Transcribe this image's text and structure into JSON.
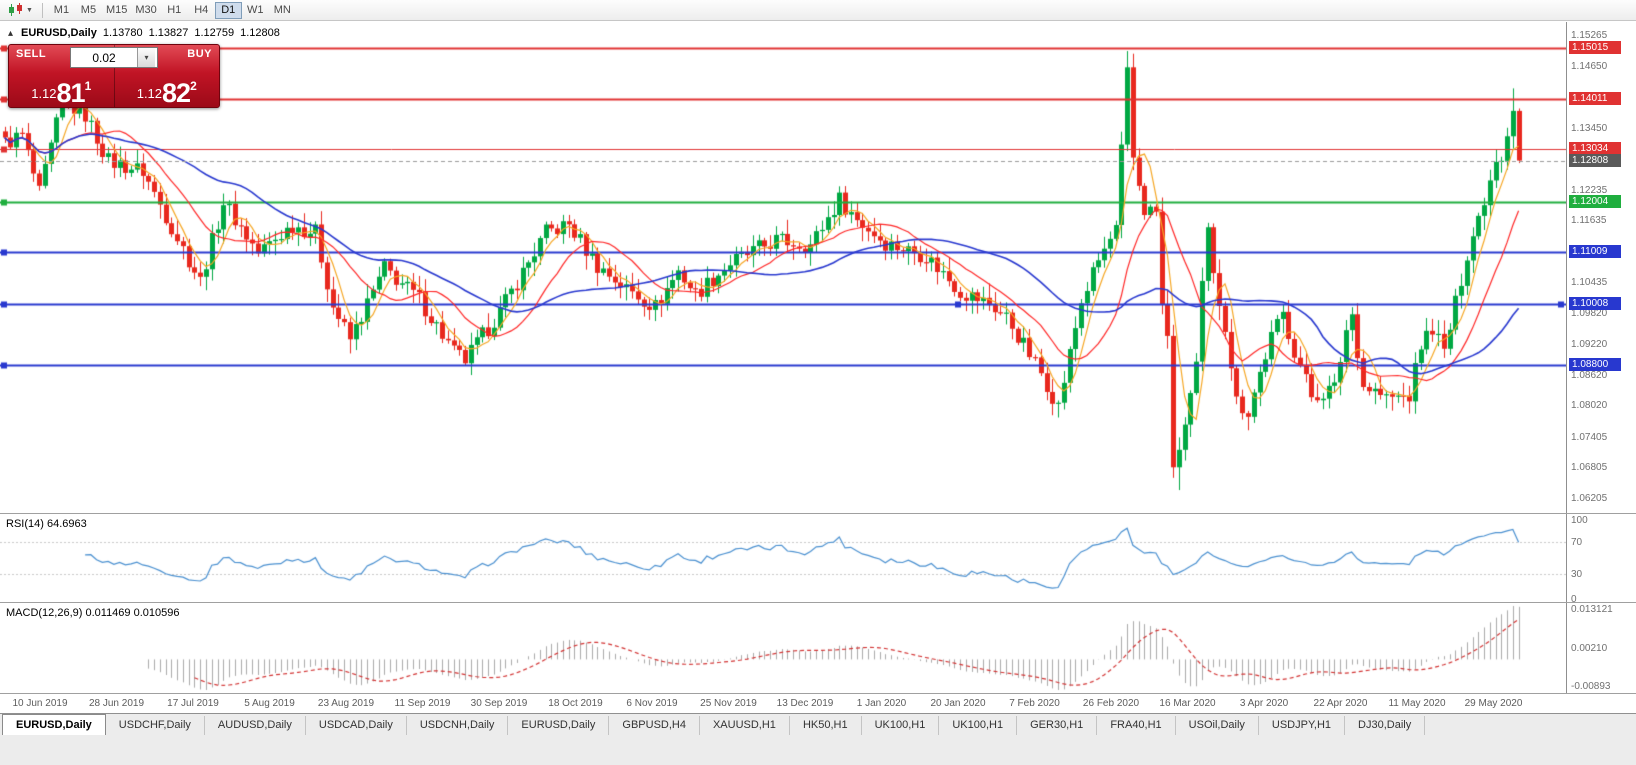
{
  "toolbar": {
    "timeframes": [
      {
        "label": "M1",
        "active": false
      },
      {
        "label": "M5",
        "active": false
      },
      {
        "label": "M15",
        "active": false
      },
      {
        "label": "M30",
        "active": false
      },
      {
        "label": "H1",
        "active": false
      },
      {
        "label": "H4",
        "active": false
      },
      {
        "label": "D1",
        "active": true
      },
      {
        "label": "W1",
        "active": false
      },
      {
        "label": "MN",
        "active": false
      }
    ]
  },
  "chart_header": {
    "collapse_icon": "▴",
    "symbol": "EURUSD,Daily",
    "open": "1.13780",
    "high": "1.13827",
    "low": "1.12759",
    "close": "1.12808"
  },
  "trade_panel": {
    "sell_label": "SELL",
    "buy_label": "BUY",
    "volume": "0.02",
    "dropdown_icon": "▾",
    "sell_price": {
      "small": "1.12",
      "big": "81",
      "sup": "1"
    },
    "buy_price": {
      "small": "1.12",
      "big": "82",
      "sup": "2"
    }
  },
  "price_axis": {
    "ticks": [
      "1.15265",
      "1.14650",
      "1.14040",
      "1.13450",
      "1.12835",
      "1.12235",
      "1.11635",
      "1.11035",
      "1.10435",
      "1.09820",
      "1.09220",
      "1.08620",
      "1.08020",
      "1.07405",
      "1.06805",
      "1.06205"
    ]
  },
  "levels": [
    {
      "value": 1.15015,
      "label": "1.15015",
      "color": "#e03232",
      "width": 2
    },
    {
      "value": 1.14011,
      "label": "1.14011",
      "color": "#e03232",
      "width": 2
    },
    {
      "value": 1.13034,
      "label": "1.13034",
      "color": "#e03232",
      "width": 1
    },
    {
      "value": 1.12004,
      "label": "1.12004",
      "color": "#1fae3e",
      "width": 2
    },
    {
      "value": 1.11009,
      "label": "1.11009",
      "color": "#2838cf",
      "width": 2
    },
    {
      "value": 1.10008,
      "label": "1.10008",
      "color": "#2838cf",
      "width": 2,
      "selected": true
    },
    {
      "value": 1.088,
      "label": "1.08800",
      "color": "#2838cf",
      "width": 2
    }
  ],
  "current_price": {
    "value": 1.12808,
    "label": "1.12808",
    "color": "#5a5a5a"
  },
  "rsi_panel": {
    "label": "RSI(14) 64.6963",
    "value": 64.6963,
    "axis": [
      "100",
      "70",
      "30",
      "0"
    ],
    "levels": [
      70,
      30
    ],
    "line_color": "#4a90d0"
  },
  "macd_panel": {
    "label": "MACD(12,26,9) 0.011469 0.010596",
    "macd_value": 0.011469,
    "signal_value": 0.010596,
    "axis": [
      "0.013121",
      "0.00210",
      "-0.00893"
    ],
    "axis_range": [
      -0.00893,
      0.013121
    ],
    "hist_color": "#aaaaaa",
    "signal_color": "#d23333"
  },
  "date_axis": [
    "10 Jun 2019",
    "28 Jun 2019",
    "17 Jul 2019",
    "5 Aug 2019",
    "23 Aug 2019",
    "11 Sep 2019",
    "30 Sep 2019",
    "18 Oct 2019",
    "6 Nov 2019",
    "25 Nov 2019",
    "13 Dec 2019",
    "1 Jan 2020",
    "20 Jan 2020",
    "7 Feb 2020",
    "26 Feb 2020",
    "16 Mar 2020",
    "3 Apr 2020",
    "22 Apr 2020",
    "11 May 2020",
    "29 May 2020"
  ],
  "tabs": [
    {
      "label": "EURUSD,Daily",
      "active": true
    },
    {
      "label": "USDCHF,Daily",
      "active": false
    },
    {
      "label": "AUDUSD,Daily",
      "active": false
    },
    {
      "label": "USDCAD,Daily",
      "active": false
    },
    {
      "label": "USDCNH,Daily",
      "active": false
    },
    {
      "label": "EURUSD,Daily",
      "active": false
    },
    {
      "label": "GBPUSD,H4",
      "active": false
    },
    {
      "label": "XAUUSD,H1",
      "active": false
    },
    {
      "label": "HK50,H1",
      "active": false
    },
    {
      "label": "UK100,H1",
      "active": false
    },
    {
      "label": "UK100,H1",
      "active": false
    },
    {
      "label": "GER30,H1",
      "active": false
    },
    {
      "label": "FRA40,H1",
      "active": false
    },
    {
      "label": "USOil,Daily",
      "active": false
    },
    {
      "label": "USDJPY,H1",
      "active": false
    },
    {
      "label": "DJ30,Daily",
      "active": false
    }
  ],
  "chart_data": {
    "type": "candlestick",
    "symbol": "EURUSD",
    "timeframe": "Daily",
    "x_range": [
      "10 Jun 2019",
      "11 Jun 2020"
    ],
    "price_axis_range": [
      1.0597,
      1.1548
    ],
    "candle_count": 264,
    "ohlc_last": [
      1.1378,
      1.13827,
      1.12759,
      1.12808
    ],
    "up_color": "#00a843",
    "down_color": "#e8281e",
    "close_anchors": [
      [
        0,
        1.1315
      ],
      [
        3,
        1.133
      ],
      [
        6,
        1.1215
      ],
      [
        10,
        1.1395
      ],
      [
        14,
        1.137
      ],
      [
        18,
        1.128
      ],
      [
        24,
        1.126
      ],
      [
        30,
        1.113
      ],
      [
        34,
        1.1045
      ],
      [
        38,
        1.12
      ],
      [
        44,
        1.11
      ],
      [
        50,
        1.1155
      ],
      [
        54,
        1.114
      ],
      [
        57,
        1.0995
      ],
      [
        60,
        1.093
      ],
      [
        66,
        1.107
      ],
      [
        72,
        1.101
      ],
      [
        78,
        1.0905
      ],
      [
        80,
        1.089
      ],
      [
        86,
        1.0985
      ],
      [
        94,
        1.114
      ],
      [
        98,
        1.1155
      ],
      [
        103,
        1.1075
      ],
      [
        108,
        1.103
      ],
      [
        113,
        1.0995
      ],
      [
        117,
        1.1065
      ],
      [
        120,
        1.102
      ],
      [
        126,
        1.108
      ],
      [
        134,
        1.1125
      ],
      [
        140,
        1.1115
      ],
      [
        145,
        1.1205
      ],
      [
        148,
        1.1165
      ],
      [
        153,
        1.112
      ],
      [
        160,
        1.1095
      ],
      [
        166,
        1.1025
      ],
      [
        171,
        1.1
      ],
      [
        174,
        1.0975
      ],
      [
        180,
        1.0865
      ],
      [
        183,
        1.08
      ],
      [
        187,
        1.1005
      ],
      [
        190,
        1.1085
      ],
      [
        193,
        1.1145
      ],
      [
        195,
        1.145
      ],
      [
        196,
        1.1285
      ],
      [
        198,
        1.1185
      ],
      [
        200,
        1.118
      ],
      [
        201,
        1.0995
      ],
      [
        202,
        1.093
      ],
      [
        203,
        1.069
      ],
      [
        204,
        1.07
      ],
      [
        205,
        1.077
      ],
      [
        207,
        1.088
      ],
      [
        208,
        1.103
      ],
      [
        209,
        1.114
      ],
      [
        210,
        1.105
      ],
      [
        212,
        1.096
      ],
      [
        214,
        1.081
      ],
      [
        216,
        1.079
      ],
      [
        218,
        1.0865
      ],
      [
        220,
        1.0935
      ],
      [
        222,
        1.098
      ],
      [
        224,
        1.091
      ],
      [
        227,
        1.082
      ],
      [
        231,
        1.0835
      ],
      [
        233,
        1.095
      ],
      [
        234,
        1.098
      ],
      [
        236,
        1.084
      ],
      [
        238,
        1.083
      ],
      [
        240,
        1.0815
      ],
      [
        244,
        1.082
      ],
      [
        246,
        1.092
      ],
      [
        248,
        1.0955
      ],
      [
        250,
        1.0905
      ],
      [
        252,
        1.1
      ],
      [
        254,
        1.11
      ],
      [
        256,
        1.117
      ],
      [
        258,
        1.1245
      ],
      [
        259,
        1.129
      ],
      [
        260,
        1.129
      ],
      [
        261,
        1.134
      ],
      [
        262,
        1.1379
      ],
      [
        263,
        1.1281
      ]
    ],
    "wick_overrides": {
      "10": [
        1.1412,
        null
      ],
      "35": [
        null,
        1.1027
      ],
      "80": [
        null,
        1.0879
      ],
      "183": [
        null,
        1.0778
      ],
      "195": [
        1.1495,
        null
      ],
      "203": [
        null,
        1.066
      ],
      "204": [
        null,
        1.0636
      ],
      "262": [
        1.1422,
        null
      ]
    },
    "moving_averages": [
      {
        "period": 5,
        "color": "#f5a623",
        "width": 1.2
      },
      {
        "period": 13,
        "color": "#ff2626",
        "width": 1.2
      },
      {
        "period": 34,
        "color": "#2838cf",
        "width": 1.6
      }
    ]
  }
}
